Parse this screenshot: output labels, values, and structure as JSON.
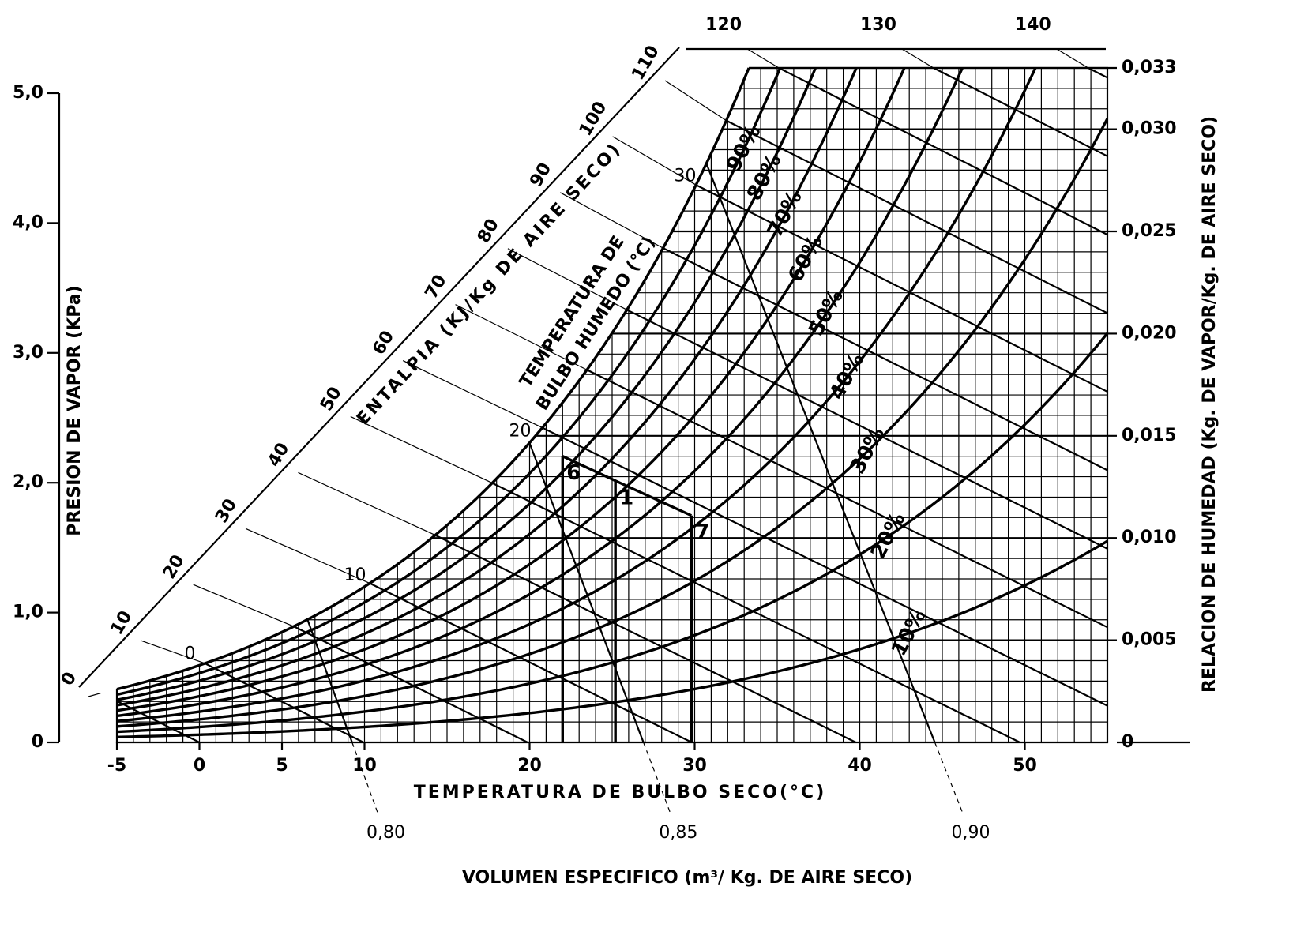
{
  "chart_data": {
    "type": "psychrometric",
    "x_label": "TEMPERATURA DE BULBO SECO(°C)",
    "y_label": "PRESION DE VAPOR (KPa)",
    "y2_label": "RELACION DE HUMEDAD (Kg. DE VAPOR/Kg. DE AIRE SECO)",
    "enthalpy_label": "ENTALPIA (KJ/Kg DE AIRE SECO)",
    "wet_bulb_label": [
      "TEMPERATURA DE",
      "BULBO HUMEDO (°C)"
    ],
    "volume_label": "VOLUMEN ESPECIFICO (m³/ Kg. DE AIRE SECO)",
    "xlim": [
      -5,
      55
    ],
    "xticks": [
      -5,
      0,
      5,
      10,
      20,
      30,
      40,
      50
    ],
    "ylim": [
      0,
      5
    ],
    "yticks": [
      {
        "value": 0,
        "label": "0"
      },
      {
        "value": 1,
        "label": "1,0"
      },
      {
        "value": 2,
        "label": "2,0"
      },
      {
        "value": 3,
        "label": "3,0"
      },
      {
        "value": 4,
        "label": "4,0"
      },
      {
        "value": 5,
        "label": "5,0"
      }
    ],
    "y2lim": [
      0,
      0.033
    ],
    "y2ticks": [
      {
        "value": 0,
        "label": "0"
      },
      {
        "value": 0.005,
        "label": "0,005"
      },
      {
        "value": 0.01,
        "label": "0,010"
      },
      {
        "value": 0.015,
        "label": "0,015"
      },
      {
        "value": 0.02,
        "label": "0,020"
      },
      {
        "value": 0.025,
        "label": "0,025"
      },
      {
        "value": 0.03,
        "label": "0,030"
      },
      {
        "value": 0.033,
        "label": "0,033"
      }
    ],
    "x_minor_step": 1,
    "y2_minor_step": 0.001,
    "rh_curves": [
      {
        "value": 10,
        "label": "10%"
      },
      {
        "value": 20,
        "label": "20%"
      },
      {
        "value": 30,
        "label": "30%"
      },
      {
        "value": 40,
        "label": "40%"
      },
      {
        "value": 50,
        "label": "50%"
      },
      {
        "value": 60,
        "label": "60%"
      },
      {
        "value": 70,
        "label": "70%"
      },
      {
        "value": 80,
        "label": "80%"
      },
      {
        "value": 90,
        "label": "90%"
      }
    ],
    "enthalpy_ticks": [
      0,
      10,
      20,
      30,
      40,
      50,
      60,
      70,
      80,
      90,
      100,
      110,
      120,
      130,
      140
    ],
    "wet_bulb_ticks": [
      0,
      10,
      20,
      30
    ],
    "volume_ticks": [
      {
        "value": 0.8,
        "label": "0,80"
      },
      {
        "value": 0.85,
        "label": "0,85"
      },
      {
        "value": 0.9,
        "label": "0,90"
      }
    ],
    "points": [
      {
        "label": "6",
        "t": 22,
        "w": 0.014
      },
      {
        "label": "1",
        "t": 25.2,
        "w": 0.0128
      },
      {
        "label": "7",
        "t": 29.8,
        "w": 0.0111
      }
    ],
    "color": "#000000"
  }
}
